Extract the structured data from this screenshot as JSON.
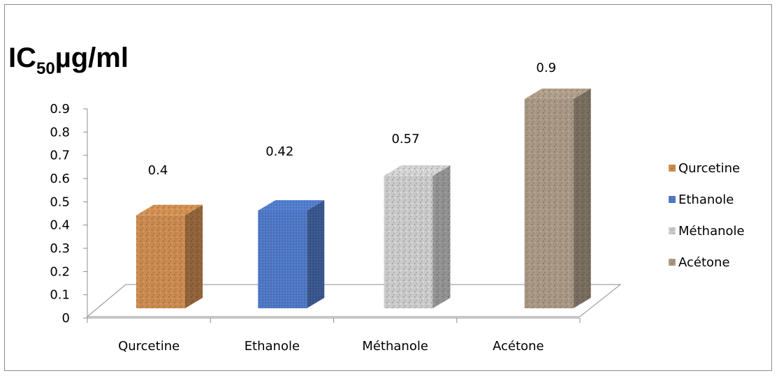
{
  "chart_data": {
    "type": "bar",
    "ylabel": {
      "prefix": "IC",
      "sub": "50",
      "suffix": "µg/ml"
    },
    "categories": [
      "Qurcetine",
      "Ethanole",
      "Méthanole",
      "Acétone"
    ],
    "values": [
      0.4,
      0.42,
      0.57,
      0.9
    ],
    "data_labels": [
      "0.4",
      "0.42",
      "0.57",
      "0.9"
    ],
    "yticks": [
      "0",
      "0.1",
      "0.2",
      "0.3",
      "0.4",
      "0.5",
      "0.6",
      "0.7",
      "0.8",
      "0.9"
    ],
    "ylim": [
      0,
      0.9
    ],
    "legend": [
      "Qurcetine",
      "Ethanole",
      "Méthanole",
      "Acétone"
    ],
    "legend_position": "right",
    "colors": [
      "#c98a50",
      "#4f78c4",
      "#c9c9c9",
      "#a89784"
    ],
    "style": "3d-textured-columns"
  }
}
